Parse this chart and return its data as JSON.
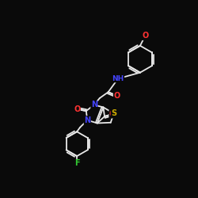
{
  "background_color": "#0a0a0a",
  "bond_color": "#e8e8e8",
  "atom_colors": {
    "N": "#4444ff",
    "O": "#ff3333",
    "S": "#ccaa00",
    "F": "#33cc33",
    "C": "#e8e8e8"
  },
  "figsize": [
    2.5,
    2.5
  ],
  "dpi": 100,
  "lw": 1.3
}
